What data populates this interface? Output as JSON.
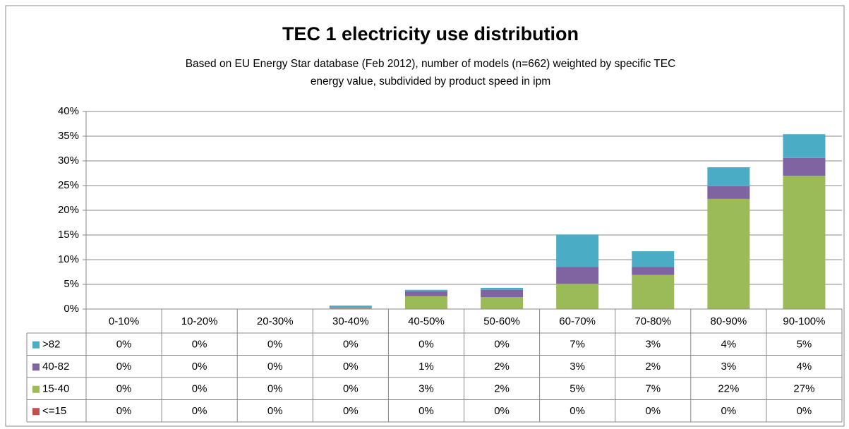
{
  "chart_data": {
    "type": "stacked_bar",
    "title": "TEC 1 electricity use distribution",
    "subtitle": [
      "Based on EU Energy Star database (Feb 2012), number of models (n=662) weighted by specific TEC",
      "energy value, subdivided by product speed in ipm"
    ],
    "categories": [
      "0-10%",
      "10-20%",
      "20-30%",
      "30-40%",
      "40-50%",
      "50-60%",
      "60-70%",
      "70-80%",
      "80-90%",
      "90-100%"
    ],
    "series": [
      {
        "name": "<=15",
        "color": "#c0504d",
        "values": [
          0,
          0,
          0,
          0,
          0,
          0,
          0,
          0,
          0,
          0
        ],
        "value_labels": [
          "0%",
          "0%",
          "0%",
          "0%",
          "0%",
          "0%",
          "0%",
          "0%",
          "0%",
          "0%"
        ]
      },
      {
        "name": "15-40",
        "color": "#9bbb59",
        "values": [
          0,
          0,
          0,
          0.2,
          2.6,
          2.4,
          5.1,
          6.9,
          22.3,
          27.0
        ],
        "value_labels": [
          "0%",
          "0%",
          "0%",
          "0%",
          "3%",
          "2%",
          "5%",
          "7%",
          "22%",
          "27%"
        ]
      },
      {
        "name": "40-82",
        "color": "#8064a2",
        "values": [
          0,
          0,
          0,
          0.1,
          1.0,
          1.5,
          3.4,
          1.6,
          2.6,
          3.6
        ],
        "value_labels": [
          "0%",
          "0%",
          "0%",
          "0%",
          "1%",
          "2%",
          "3%",
          "2%",
          "3%",
          "4%"
        ]
      },
      {
        "name": ">82",
        "color": "#4bacc6",
        "values": [
          0,
          0,
          0,
          0.4,
          0.3,
          0.4,
          6.6,
          3.2,
          3.8,
          4.8
        ],
        "value_labels": [
          "0%",
          "0%",
          "0%",
          "0%",
          "0%",
          "0%",
          "7%",
          "3%",
          "4%",
          "5%"
        ]
      }
    ],
    "ylim": [
      0,
      40
    ],
    "yticks": [
      {
        "value": 0,
        "label": "0%"
      },
      {
        "value": 5,
        "label": "5%"
      },
      {
        "value": 10,
        "label": "10%"
      },
      {
        "value": 15,
        "label": "15%"
      },
      {
        "value": 20,
        "label": "20%"
      },
      {
        "value": 25,
        "label": "25%"
      },
      {
        "value": 30,
        "label": "30%"
      },
      {
        "value": 35,
        "label": "35%"
      },
      {
        "value": 40,
        "label": "40%"
      }
    ],
    "grid": true
  }
}
